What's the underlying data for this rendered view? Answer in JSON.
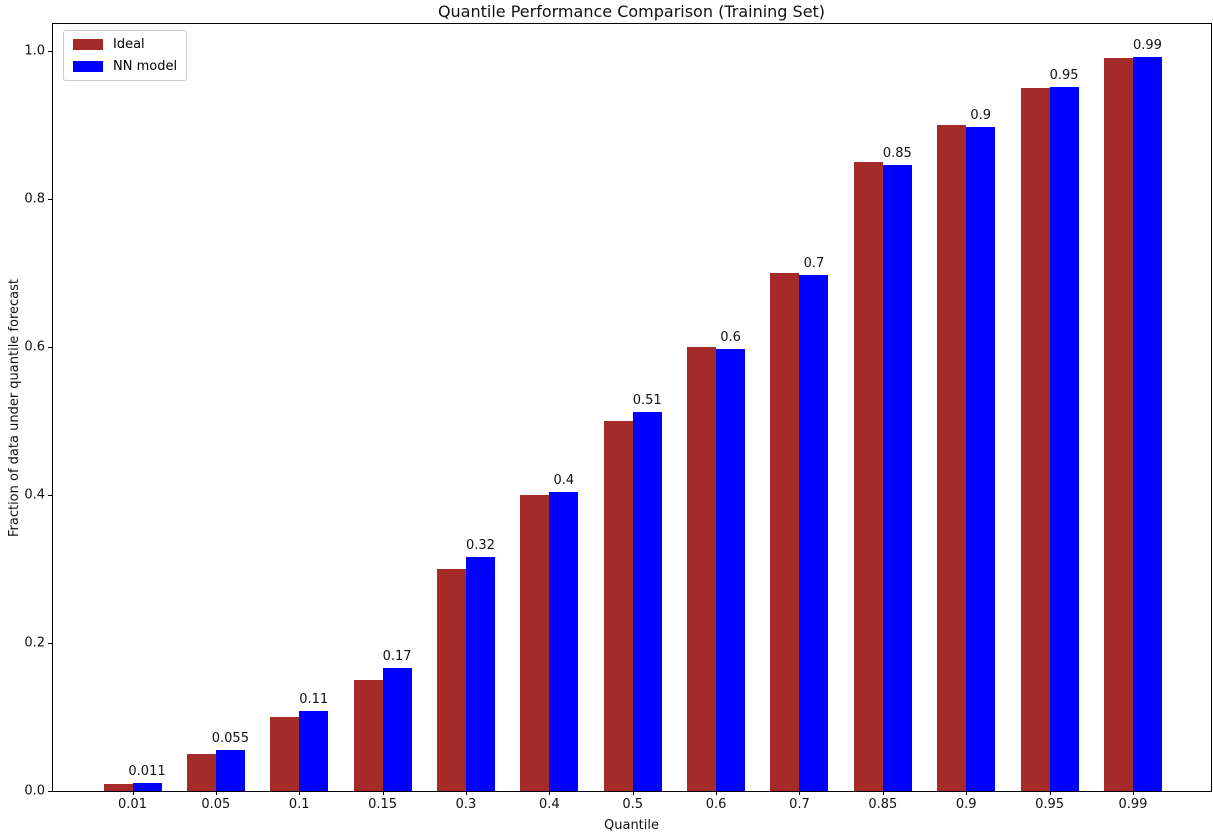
{
  "chart_data": {
    "type": "bar",
    "title": "Quantile Performance Comparison (Training Set)",
    "xlabel": "Quantile",
    "ylabel": "Fraction of data under quantile forecast",
    "categories": [
      "0.01",
      "0.05",
      "0.1",
      "0.15",
      "0.3",
      "0.4",
      "0.5",
      "0.6",
      "0.7",
      "0.85",
      "0.9",
      "0.95",
      "0.99"
    ],
    "series": [
      {
        "name": "Ideal",
        "color": "#A52A2A",
        "values": [
          0.01,
          0.05,
          0.1,
          0.15,
          0.3,
          0.4,
          0.5,
          0.6,
          0.7,
          0.85,
          0.9,
          0.95,
          0.99
        ]
      },
      {
        "name": "NN model",
        "color": "#0000FF",
        "values": [
          0.011,
          0.055,
          0.108,
          0.166,
          0.316,
          0.404,
          0.512,
          0.597,
          0.697,
          0.846,
          0.897,
          0.951,
          0.992
        ]
      }
    ],
    "bar_labels": [
      "0.011",
      "0.055",
      "0.11",
      "0.17",
      "0.32",
      "0.4",
      "0.51",
      "0.6",
      "0.7",
      "0.85",
      "0.9",
      "0.95",
      "0.99"
    ],
    "y_ticks": [
      "0.0",
      "0.2",
      "0.4",
      "0.6",
      "0.8",
      "1.0"
    ],
    "ylim": [
      0,
      1.04
    ],
    "grid": false,
    "legend_position": "upper left",
    "axis_color": "#000000",
    "text_color": "#111111"
  }
}
